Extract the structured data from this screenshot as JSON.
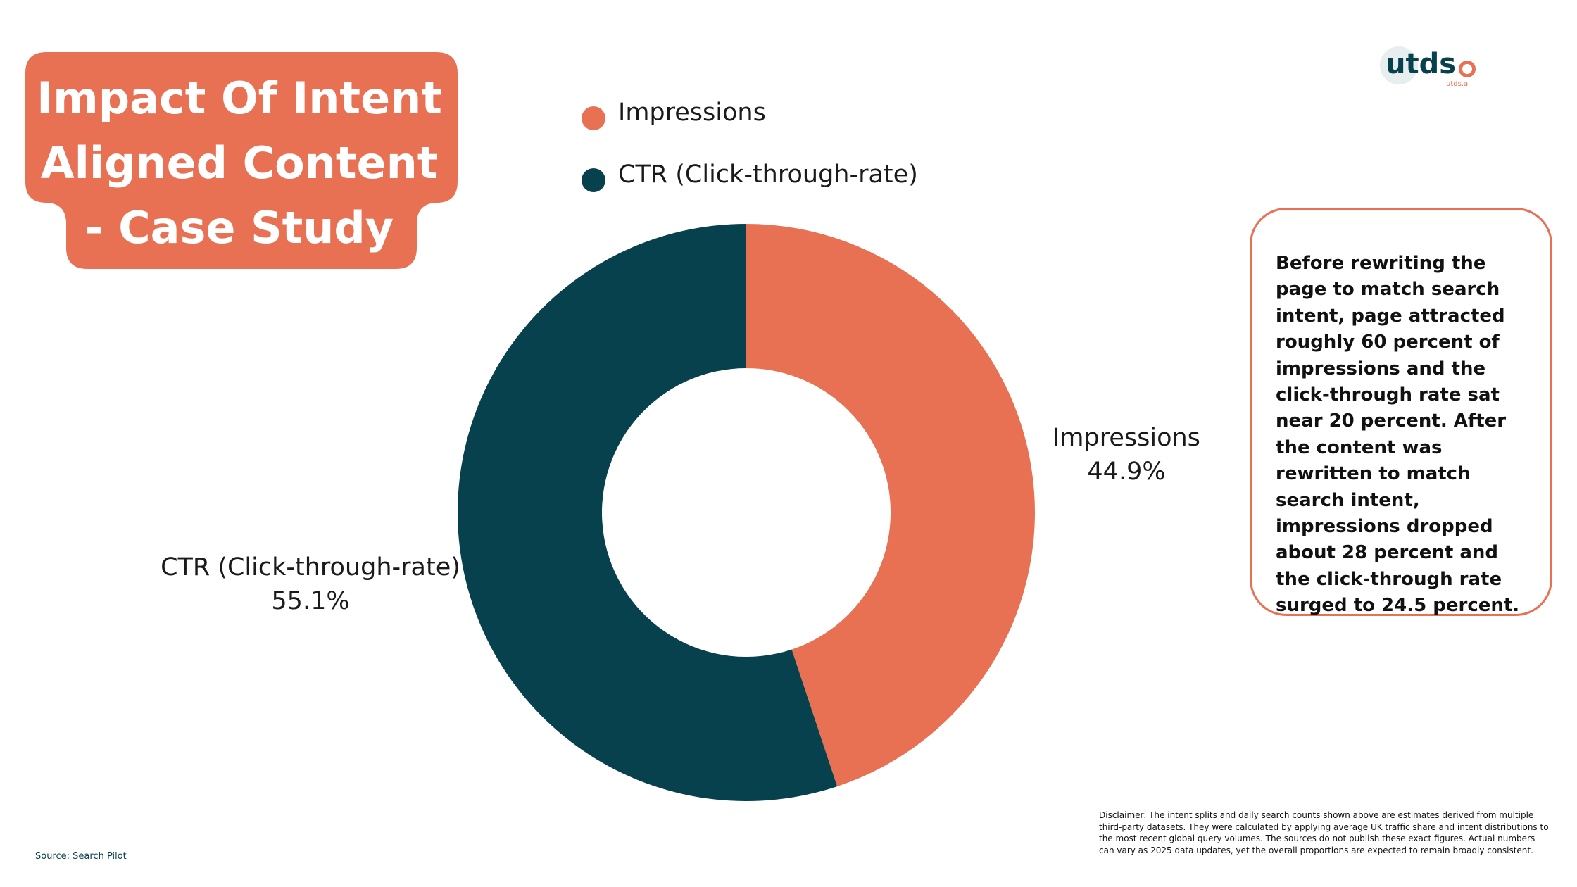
{
  "title": {
    "lines": [
      "Impact Of Intent",
      "Aligned Content",
      "- Case Study"
    ]
  },
  "logo": {
    "text": "utds",
    "subtext": "utds.ai",
    "icon": "utdso-logo"
  },
  "colors": {
    "accent": "#e87154",
    "dark": "#07414d",
    "background": "#ffffff"
  },
  "chart_data": {
    "type": "pie",
    "style": "donut",
    "legend_position": "top",
    "categories": [
      "Impressions",
      "CTR (Click-through-rate)"
    ],
    "values": [
      44.9,
      55.1
    ],
    "value_labels": [
      "44.9%",
      "55.1%"
    ],
    "colors": [
      "#e87154",
      "#07414d"
    ],
    "start": "top",
    "direction": "clockwise"
  },
  "info": {
    "text": "Before rewriting the page to match search intent, page attracted roughly 60 percent of impressions and the click-through rate sat near 20 percent. After the content was rewritten to match search intent, impressions dropped about 28 percent and the click-through rate surged to 24.5 percent."
  },
  "source": "Source: Search Pilot",
  "disclaimer": "Disclaimer: The intent splits and daily search counts shown above are estimates derived from multiple third-party datasets. They were calculated by applying average UK traffic share and intent distributions to the most recent global query volumes. The sources do not publish these exact figures. Actual numbers can vary as 2025 data updates, yet the overall proportions are expected to remain broadly consistent."
}
